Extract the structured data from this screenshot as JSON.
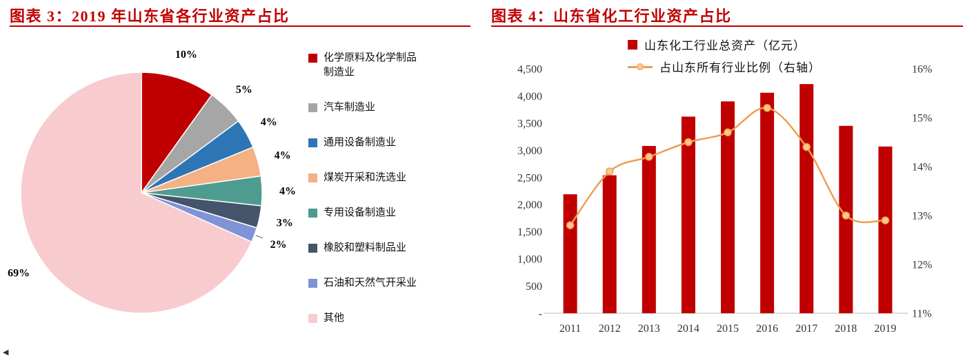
{
  "page": {
    "background": "#ffffff",
    "accent_color": "#c00000",
    "corner_glyph": "◀"
  },
  "figure3": {
    "title": "图表 3：2019 年山东省各行业资产占比"
  },
  "figure4": {
    "title": "图表 4：山东省化工行业资产占比"
  },
  "chart_data": [
    {
      "type": "pie",
      "title": "2019 年山东省各行业资产占比",
      "unit": "%",
      "legend_position": "right",
      "slices": [
        {
          "label": "化学原料及化学制品制造业",
          "value": 10,
          "display": "10%",
          "color": "#c00000"
        },
        {
          "label": "汽车制造业",
          "value": 5,
          "display": "5%",
          "color": "#a6a6a6"
        },
        {
          "label": "通用设备制造业",
          "value": 4,
          "display": "4%",
          "color": "#2e75b6"
        },
        {
          "label": "煤炭开采和洗选业",
          "value": 4,
          "display": "4%",
          "color": "#f4b183"
        },
        {
          "label": "专用设备制造业",
          "value": 4,
          "display": "4%",
          "color": "#4e9c90"
        },
        {
          "label": "橡胶和塑料制品业",
          "value": 3,
          "display": "3%",
          "color": "#44546a"
        },
        {
          "label": "石油和天然气开采业",
          "value": 2,
          "display": "2%",
          "color": "#8093d6"
        },
        {
          "label": "其他",
          "value": 69,
          "display": "69%",
          "color": "#f8cbce"
        }
      ]
    },
    {
      "type": "bar+line",
      "title": "山东省化工行业资产占比",
      "legend_position": "top",
      "grid": false,
      "categories": [
        "2011",
        "2012",
        "2013",
        "2014",
        "2015",
        "2016",
        "2017",
        "2018",
        "2019"
      ],
      "series": [
        {
          "name": "山东化工行业总资产（亿元）",
          "chart": "bar",
          "axis": "left",
          "color": "#c00000",
          "values": [
            2190,
            2540,
            3080,
            3620,
            3900,
            4060,
            4220,
            3450,
            3070
          ]
        },
        {
          "name": "占山东所有行业比例（右轴）",
          "chart": "line",
          "axis": "right",
          "color": "#ee9e53",
          "marker_fill": "#f9c88a",
          "values": [
            12.8,
            13.9,
            14.2,
            14.5,
            14.7,
            15.2,
            14.4,
            13.0,
            12.9
          ]
        }
      ],
      "left_axis": {
        "min": 0,
        "max": 4500,
        "step": 500,
        "zero_label": "-"
      },
      "right_axis": {
        "min": 11,
        "max": 16,
        "step": 1,
        "suffix": "%"
      }
    }
  ]
}
